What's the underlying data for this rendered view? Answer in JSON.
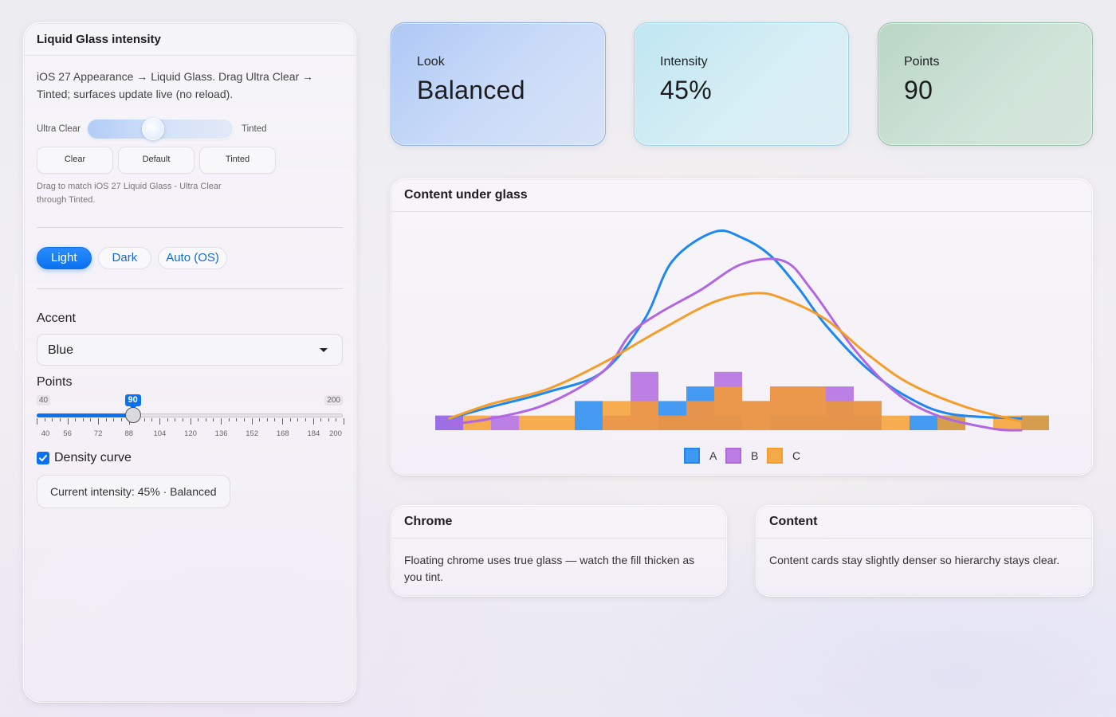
{
  "panel": {
    "title": "Liquid Glass intensity",
    "description": "iOS 27 Appearance → Liquid Glass. Drag Ultra Clear → Tinted; surfaces update live (no reload).",
    "slider_left_label": "Ultra Clear",
    "slider_right_label": "Tinted",
    "intensity_fraction": 0.45,
    "presets": [
      "Clear",
      "Default",
      "Tinted"
    ],
    "hint": "Drag to match iOS 27 Liquid Glass - Ultra Clear through Tinted.",
    "theme": {
      "options": [
        "Light",
        "Dark",
        "Auto (OS)"
      ],
      "selected": "Light"
    },
    "accent_label": "Accent",
    "accent_value": "Blue",
    "points_label": "Points",
    "points_min": "40",
    "points_max": "200",
    "points_value": 90,
    "points_badge": "90",
    "tick_labels": [
      "40",
      "56",
      "72",
      "88",
      "104",
      "120",
      "136",
      "152",
      "168",
      "184",
      "200"
    ],
    "density_label": "Density curve",
    "density_checked": true,
    "status": "Current intensity: 45%  ·  Balanced"
  },
  "stats": {
    "look": {
      "label": "Look",
      "value": "Balanced"
    },
    "intensity": {
      "label": "Intensity",
      "value": "45%"
    },
    "points": {
      "label": "Points",
      "value": "90"
    }
  },
  "chart_card": {
    "title": "Content under glass"
  },
  "chrome_card": {
    "title": "Chrome",
    "text": "Floating chrome uses true glass — watch the fill thicken as you tint."
  },
  "content_card": {
    "title": "Content",
    "text": "Content cards stay slightly denser so hierarchy stays clear."
  },
  "colors": {
    "accent": "#0a72f0",
    "series_a": "#1e88f0",
    "series_b": "#b067e0",
    "series_c": "#f59d2a"
  },
  "chart_data": {
    "type": "histogram",
    "bins": 22,
    "legend_position": "bottom-center",
    "series": [
      {
        "name": "A",
        "color": "#1e88f0",
        "counts": [
          1,
          0,
          0,
          0,
          0,
          2,
          0,
          0,
          2,
          3,
          1,
          0,
          1,
          1,
          2,
          1,
          0,
          1,
          1,
          0,
          0,
          1
        ]
      },
      {
        "name": "B",
        "color": "#b067e0",
        "counts": [
          1,
          0,
          1,
          0,
          0,
          0,
          1,
          4,
          1,
          2,
          4,
          2,
          3,
          3,
          3,
          2,
          0,
          0,
          0,
          0,
          0,
          0
        ]
      },
      {
        "name": "C",
        "color": "#f59d2a",
        "counts": [
          0,
          1,
          0,
          1,
          1,
          0,
          2,
          2,
          1,
          2,
          3,
          2,
          3,
          3,
          2,
          2,
          1,
          0,
          1,
          0,
          1,
          1
        ]
      }
    ],
    "density": [
      {
        "name": "A",
        "points": [
          [
            0.5,
            0.8
          ],
          [
            2,
            1.6
          ],
          [
            4,
            2.6
          ],
          [
            6,
            4.0
          ],
          [
            7.5,
            7.6
          ],
          [
            8.5,
            11.6
          ],
          [
            10,
            13.6
          ],
          [
            11,
            13.2
          ],
          [
            12,
            12.0
          ],
          [
            13,
            9.8
          ],
          [
            14,
            7.2
          ],
          [
            15.5,
            4.2
          ],
          [
            17,
            2.2
          ],
          [
            18.5,
            1.1
          ],
          [
            21,
            0.8
          ]
        ]
      },
      {
        "name": "B",
        "points": [
          [
            0.5,
            0.4
          ],
          [
            2,
            0.8
          ],
          [
            4,
            1.8
          ],
          [
            6,
            4.0
          ],
          [
            7,
            6.6
          ],
          [
            8,
            8.0
          ],
          [
            9.5,
            9.6
          ],
          [
            11,
            11.4
          ],
          [
            12.5,
            11.6
          ],
          [
            13.5,
            9.6
          ],
          [
            15,
            5.6
          ],
          [
            16.5,
            2.6
          ],
          [
            18,
            1.0
          ],
          [
            20,
            0.1
          ],
          [
            21,
            0
          ]
        ]
      },
      {
        "name": "C",
        "points": [
          [
            0.5,
            0.8
          ],
          [
            2,
            1.8
          ],
          [
            4,
            2.8
          ],
          [
            6,
            4.6
          ],
          [
            8,
            6.8
          ],
          [
            10,
            8.8
          ],
          [
            11.5,
            9.4
          ],
          [
            12.5,
            9.0
          ],
          [
            14,
            7.6
          ],
          [
            15.5,
            5.2
          ],
          [
            17,
            3.2
          ],
          [
            19,
            1.6
          ],
          [
            21,
            0.6
          ]
        ]
      }
    ]
  }
}
